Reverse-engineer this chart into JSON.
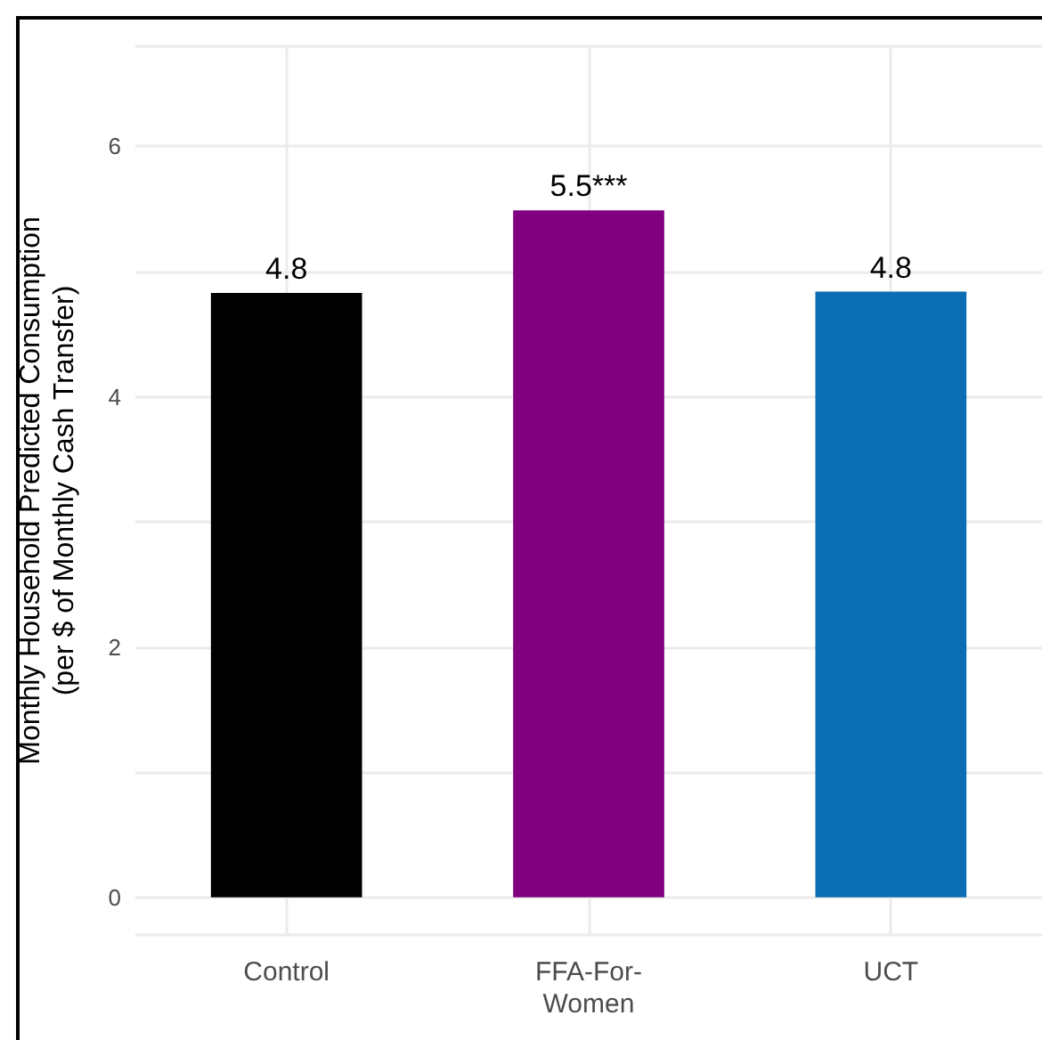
{
  "chart_data": {
    "type": "bar",
    "ylabel": "Monthly Household Predicted Consumption\n(per $ of Monthly Cash Transfer)",
    "categories": [
      "Control",
      "FFA-For-\nWomen",
      "UCT"
    ],
    "values": [
      4.83,
      5.49,
      4.84
    ],
    "colors": [
      "#000000",
      "#800080",
      "#0b6db4"
    ],
    "value_labels": [
      "4.8",
      "5.5***",
      "4.8"
    ],
    "ylim": [
      -0.3,
      6.8
    ],
    "yticks": [
      0,
      2,
      4,
      6
    ],
    "grid": true
  }
}
